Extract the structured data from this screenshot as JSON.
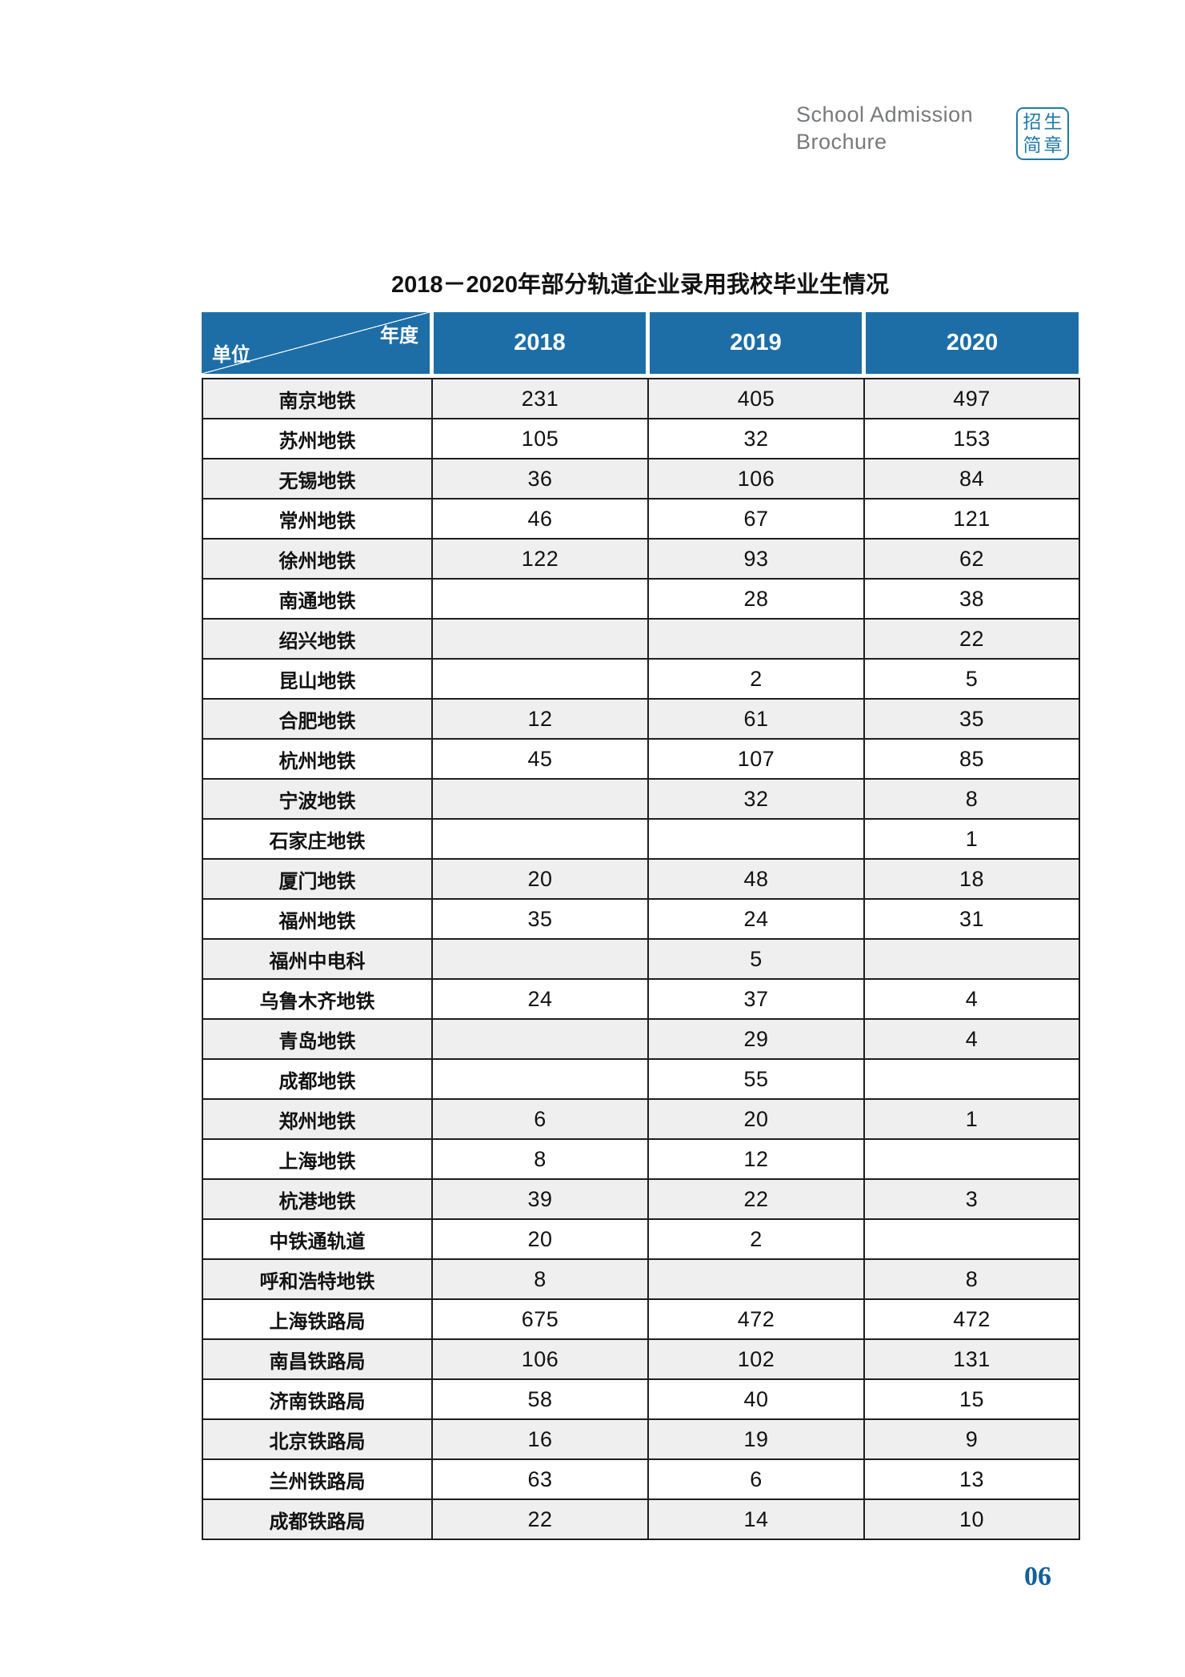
{
  "header": {
    "line1": "School Admission",
    "line2": "Brochure",
    "logo_line1": "招生",
    "logo_line2": "简章"
  },
  "table": {
    "title": "2018－2020年部分轨道企业录用我校毕业生情况",
    "corner_top_right": "年度",
    "corner_bottom_left": "单位",
    "years": [
      "2018",
      "2019",
      "2020"
    ],
    "rows": [
      {
        "unit": "南京地铁",
        "values": [
          "231",
          "405",
          "497"
        ]
      },
      {
        "unit": "苏州地铁",
        "values": [
          "105",
          "32",
          "153"
        ]
      },
      {
        "unit": "无锡地铁",
        "values": [
          "36",
          "106",
          "84"
        ]
      },
      {
        "unit": "常州地铁",
        "values": [
          "46",
          "67",
          "121"
        ]
      },
      {
        "unit": "徐州地铁",
        "values": [
          "122",
          "93",
          "62"
        ]
      },
      {
        "unit": "南通地铁",
        "values": [
          "",
          "28",
          "38"
        ]
      },
      {
        "unit": "绍兴地铁",
        "values": [
          "",
          "",
          "22"
        ]
      },
      {
        "unit": "昆山地铁",
        "values": [
          "",
          "2",
          "5"
        ]
      },
      {
        "unit": "合肥地铁",
        "values": [
          "12",
          "61",
          "35"
        ]
      },
      {
        "unit": "杭州地铁",
        "values": [
          "45",
          "107",
          "85"
        ]
      },
      {
        "unit": "宁波地铁",
        "values": [
          "",
          "32",
          "8"
        ]
      },
      {
        "unit": "石家庄地铁",
        "values": [
          "",
          "",
          "1"
        ]
      },
      {
        "unit": "厦门地铁",
        "values": [
          "20",
          "48",
          "18"
        ]
      },
      {
        "unit": "福州地铁",
        "values": [
          "35",
          "24",
          "31"
        ]
      },
      {
        "unit": "福州中电科",
        "values": [
          "",
          "5",
          ""
        ]
      },
      {
        "unit": "乌鲁木齐地铁",
        "values": [
          "24",
          "37",
          "4"
        ]
      },
      {
        "unit": "青岛地铁",
        "values": [
          "",
          "29",
          "4"
        ]
      },
      {
        "unit": "成都地铁",
        "values": [
          "",
          "55",
          ""
        ]
      },
      {
        "unit": "郑州地铁",
        "values": [
          "6",
          "20",
          "1"
        ]
      },
      {
        "unit": "上海地铁",
        "values": [
          "8",
          "12",
          ""
        ]
      },
      {
        "unit": "杭港地铁",
        "values": [
          "39",
          "22",
          "3"
        ]
      },
      {
        "unit": "中铁通轨道",
        "values": [
          "20",
          "2",
          ""
        ]
      },
      {
        "unit": "呼和浩特地铁",
        "values": [
          "8",
          "",
          "8"
        ]
      },
      {
        "unit": "上海铁路局",
        "values": [
          "675",
          "472",
          "472"
        ]
      },
      {
        "unit": "南昌铁路局",
        "values": [
          "106",
          "102",
          "131"
        ]
      },
      {
        "unit": "济南铁路局",
        "values": [
          "58",
          "40",
          "15"
        ]
      },
      {
        "unit": "北京铁路局",
        "values": [
          "16",
          "19",
          "9"
        ]
      },
      {
        "unit": "兰州铁路局",
        "values": [
          "63",
          "6",
          "13"
        ]
      },
      {
        "unit": "成都铁路局",
        "values": [
          "22",
          "14",
          "10"
        ]
      }
    ]
  },
  "page_number": "06",
  "colors": {
    "header_blue": "#1d6ea7",
    "stripe_gray": "#efefef",
    "border_dark": "#1e1e1e",
    "logo_teal": "#1f7aa6",
    "page_number_blue": "#13609c",
    "doc_header_gray": "#77797c"
  }
}
